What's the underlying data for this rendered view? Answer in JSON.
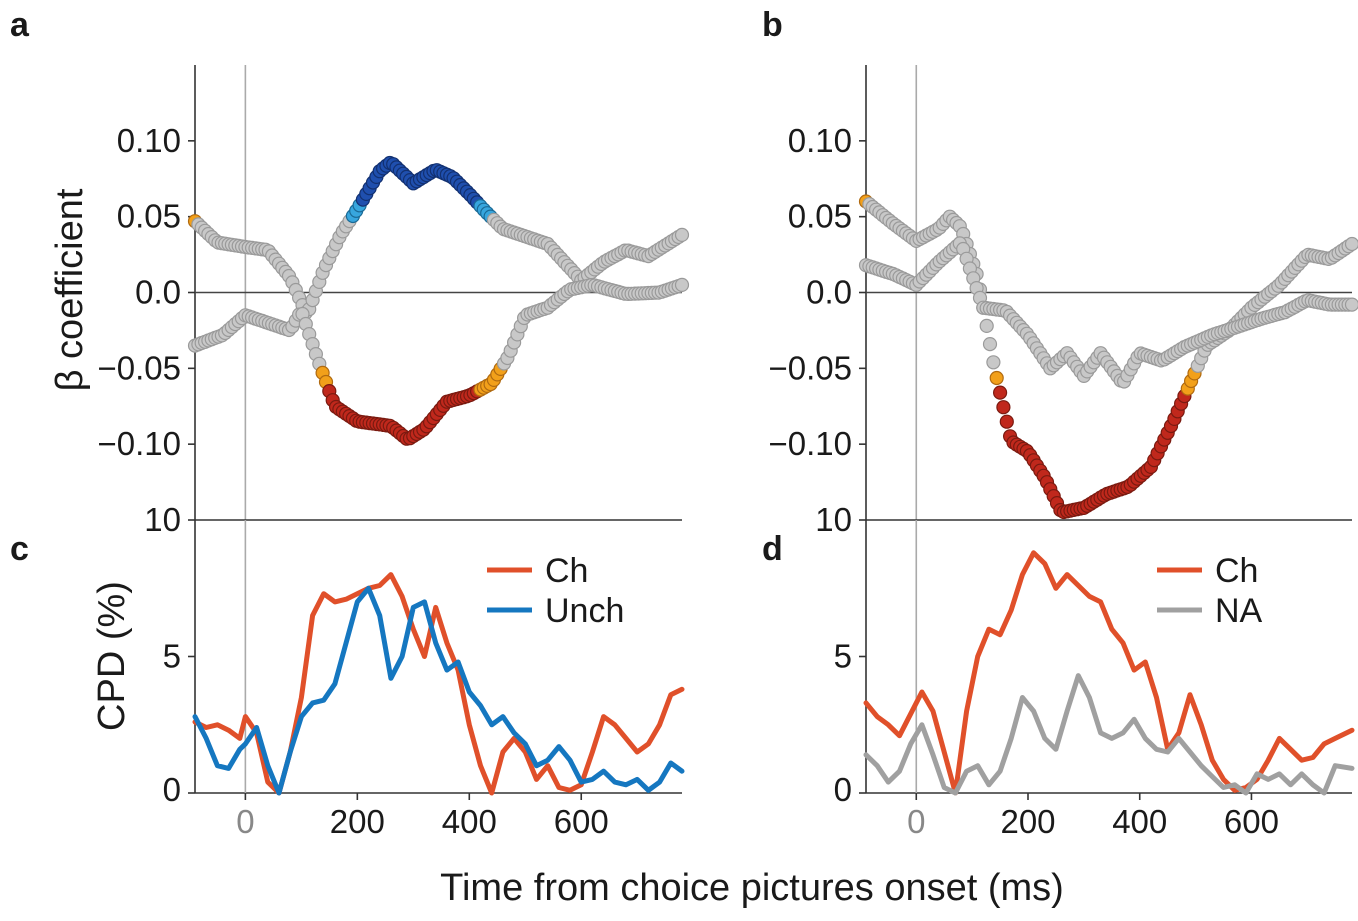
{
  "figure": {
    "xlabel": "Time from choice pictures onset (ms)",
    "ylabel_top": "β coefficient",
    "ylabel_bottom": "CPD (%)"
  },
  "colors": {
    "grey_marker": "#c8c8c8",
    "grey_marker_edge": "#9a9a9a",
    "red_marker": "#c0281c",
    "orange_marker": "#f2a01a",
    "blue_marker": "#1f4fae",
    "light_blue_marker": "#37a6de",
    "ch_line": "#e0502a",
    "unch_line": "#1577c0",
    "na_line": "#a0a0a0"
  },
  "chart_data": [
    {
      "id": "a",
      "panel_label": "a",
      "type": "scatter",
      "xlim": [
        -90,
        780
      ],
      "ylim": [
        -0.15,
        0.15
      ],
      "yticks": [
        -0.1,
        -0.05,
        0.0,
        0.05,
        0.1
      ],
      "ytick_labels": [
        "−0.10",
        "−0.05",
        "0.0",
        "0.05",
        "0.10"
      ],
      "bottom_tick_label": "10",
      "ylabel": "β coefficient",
      "series": [
        {
          "role": "upper",
          "significant_color": "blue",
          "x": [
            -90,
            -50,
            0,
            40,
            80,
            110,
            140,
            170,
            200,
            240,
            260,
            300,
            340,
            370,
            400,
            430,
            460,
            500,
            540,
            570,
            600,
            640,
            680,
            720,
            780
          ],
          "y": [
            0.047,
            0.033,
            0.03,
            0.028,
            0.01,
            -0.015,
            0.015,
            0.038,
            0.055,
            0.08,
            0.086,
            0.072,
            0.081,
            0.076,
            0.065,
            0.053,
            0.042,
            0.037,
            0.032,
            0.02,
            0.008,
            0.02,
            0.028,
            0.024,
            0.038
          ]
        },
        {
          "role": "lower",
          "significant_color": "red",
          "x": [
            -90,
            -40,
            0,
            40,
            80,
            100,
            130,
            160,
            200,
            260,
            290,
            320,
            360,
            400,
            440,
            470,
            500,
            540,
            580,
            620,
            680,
            740,
            780
          ],
          "y": [
            -0.035,
            -0.028,
            -0.015,
            -0.02,
            -0.025,
            -0.012,
            -0.045,
            -0.075,
            -0.085,
            -0.088,
            -0.097,
            -0.09,
            -0.072,
            -0.068,
            -0.06,
            -0.042,
            -0.015,
            -0.01,
            0.002,
            0.005,
            -0.001,
            0.0,
            0.005
          ]
        }
      ]
    },
    {
      "id": "b",
      "panel_label": "b",
      "type": "scatter",
      "xlim": [
        -90,
        780
      ],
      "ylim": [
        -0.15,
        0.15
      ],
      "yticks": [
        -0.1,
        -0.05,
        0.0,
        0.05,
        0.1
      ],
      "ytick_labels": [
        "−0.10",
        "−0.05",
        "0.0",
        "0.05",
        "0.10"
      ],
      "bottom_tick_label": "10",
      "series": [
        {
          "role": "upper",
          "significant_color": "red",
          "x": [
            -90,
            -40,
            0,
            40,
            60,
            80,
            110,
            140,
            170,
            200,
            230,
            260,
            300,
            340,
            380,
            420,
            460,
            490,
            520,
            560,
            600,
            650,
            700,
            740,
            780
          ],
          "y": [
            0.06,
            0.045,
            0.034,
            0.042,
            0.05,
            0.043,
            0.01,
            -0.05,
            -0.098,
            -0.105,
            -0.122,
            -0.145,
            -0.142,
            -0.133,
            -0.128,
            -0.115,
            -0.085,
            -0.06,
            -0.035,
            -0.025,
            -0.01,
            0.005,
            0.025,
            0.022,
            0.032
          ]
        },
        {
          "role": "lower",
          "significant_color": "none",
          "x": [
            -90,
            -40,
            0,
            40,
            80,
            120,
            160,
            200,
            240,
            270,
            300,
            330,
            370,
            400,
            440,
            480,
            530,
            580,
            620,
            660,
            700,
            740,
            780
          ],
          "y": [
            0.018,
            0.012,
            0.005,
            0.02,
            0.033,
            -0.01,
            -0.012,
            -0.028,
            -0.05,
            -0.04,
            -0.055,
            -0.04,
            -0.06,
            -0.04,
            -0.045,
            -0.036,
            -0.028,
            -0.022,
            -0.017,
            -0.013,
            -0.005,
            -0.008,
            -0.008
          ]
        }
      ]
    },
    {
      "id": "c",
      "panel_label": "c",
      "type": "line",
      "xlim": [
        -90,
        780
      ],
      "ylim": [
        0,
        10
      ],
      "yticks": [
        0,
        5,
        10
      ],
      "ytick_labels": [
        "0",
        "5",
        "10"
      ],
      "xticks": [
        0,
        200,
        400,
        600
      ],
      "xtick_labels": [
        "0",
        "200",
        "400",
        "600"
      ],
      "ylabel": "CPD (%)",
      "legend_position": "top-right",
      "series": [
        {
          "name": "Ch",
          "color_key": "ch_line",
          "x": [
            -90,
            -70,
            -50,
            -30,
            -10,
            0,
            20,
            40,
            60,
            80,
            100,
            120,
            140,
            160,
            180,
            200,
            220,
            240,
            260,
            280,
            300,
            320,
            340,
            360,
            380,
            400,
            420,
            440,
            460,
            480,
            500,
            520,
            540,
            560,
            580,
            600,
            620,
            640,
            660,
            680,
            700,
            720,
            740,
            760,
            780
          ],
          "y": [
            2.6,
            2.4,
            2.5,
            2.3,
            2.0,
            2.8,
            2.2,
            0.4,
            0.0,
            1.5,
            3.5,
            6.5,
            7.3,
            7.0,
            7.1,
            7.3,
            7.5,
            7.6,
            8.0,
            7.2,
            6.0,
            5.0,
            6.8,
            5.5,
            4.5,
            2.5,
            1.0,
            0.0,
            1.5,
            2.0,
            1.5,
            0.5,
            1.0,
            0.2,
            0.1,
            0.3,
            1.5,
            2.8,
            2.5,
            2.0,
            1.5,
            1.8,
            2.5,
            3.6,
            3.8
          ]
        },
        {
          "name": "Unch",
          "color_key": "unch_line",
          "x": [
            -90,
            -70,
            -50,
            -30,
            -10,
            0,
            20,
            40,
            60,
            80,
            100,
            120,
            140,
            160,
            180,
            200,
            220,
            240,
            260,
            280,
            300,
            320,
            340,
            360,
            380,
            400,
            420,
            440,
            460,
            480,
            500,
            520,
            540,
            560,
            580,
            600,
            620,
            640,
            660,
            680,
            700,
            720,
            740,
            760,
            780
          ],
          "y": [
            2.8,
            2.0,
            1.0,
            0.9,
            1.6,
            1.8,
            2.4,
            1.0,
            0.0,
            1.5,
            2.8,
            3.3,
            3.4,
            4.0,
            5.5,
            7.0,
            7.5,
            6.5,
            4.2,
            5.0,
            6.8,
            7.0,
            5.5,
            4.5,
            4.8,
            3.7,
            3.2,
            2.5,
            2.8,
            2.2,
            1.8,
            1.0,
            1.2,
            1.7,
            1.2,
            0.4,
            0.5,
            0.8,
            0.4,
            0.3,
            0.5,
            0.1,
            0.4,
            1.1,
            0.8
          ]
        }
      ]
    },
    {
      "id": "d",
      "panel_label": "d",
      "type": "line",
      "xlim": [
        -90,
        780
      ],
      "ylim": [
        0,
        10
      ],
      "yticks": [
        0,
        5,
        10
      ],
      "ytick_labels": [
        "0",
        "5",
        "10"
      ],
      "xticks": [
        0,
        200,
        400,
        600
      ],
      "xtick_labels": [
        "0",
        "200",
        "400",
        "600"
      ],
      "legend_position": "top-right",
      "series": [
        {
          "name": "Ch",
          "color_key": "ch_line",
          "x": [
            -90,
            -70,
            -50,
            -30,
            -10,
            10,
            30,
            50,
            70,
            90,
            110,
            130,
            150,
            170,
            190,
            210,
            230,
            250,
            270,
            290,
            310,
            330,
            350,
            370,
            390,
            410,
            430,
            450,
            470,
            490,
            510,
            530,
            550,
            570,
            590,
            610,
            630,
            650,
            670,
            690,
            710,
            730,
            750,
            780
          ],
          "y": [
            3.3,
            2.8,
            2.5,
            2.1,
            2.9,
            3.7,
            3.0,
            1.5,
            0.0,
            3.0,
            5.0,
            6.0,
            5.8,
            6.7,
            8.0,
            8.8,
            8.4,
            7.5,
            8.0,
            7.6,
            7.2,
            7.0,
            6.0,
            5.5,
            4.5,
            4.8,
            3.5,
            1.6,
            2.2,
            3.6,
            2.5,
            1.2,
            0.5,
            0.1,
            0.2,
            0.5,
            1.2,
            2.0,
            1.6,
            1.2,
            1.3,
            1.8,
            2.0,
            2.3
          ]
        },
        {
          "name": "NA",
          "color_key": "na_line",
          "x": [
            -90,
            -70,
            -50,
            -30,
            -10,
            10,
            30,
            50,
            70,
            90,
            110,
            130,
            150,
            170,
            190,
            210,
            230,
            250,
            270,
            290,
            310,
            330,
            350,
            370,
            390,
            410,
            430,
            450,
            470,
            490,
            510,
            530,
            550,
            570,
            590,
            610,
            630,
            650,
            670,
            690,
            710,
            730,
            750,
            780
          ],
          "y": [
            1.4,
            1.0,
            0.4,
            0.8,
            1.8,
            2.5,
            1.4,
            0.2,
            0.0,
            0.8,
            1.0,
            0.3,
            0.8,
            2.0,
            3.5,
            3.0,
            2.0,
            1.6,
            3.0,
            4.3,
            3.5,
            2.2,
            2.0,
            2.2,
            2.7,
            2.0,
            1.6,
            1.5,
            2.0,
            1.5,
            1.0,
            0.6,
            0.2,
            0.3,
            0.0,
            0.7,
            0.5,
            0.7,
            0.3,
            0.7,
            0.3,
            0.0,
            1.0,
            0.9
          ]
        }
      ]
    }
  ]
}
